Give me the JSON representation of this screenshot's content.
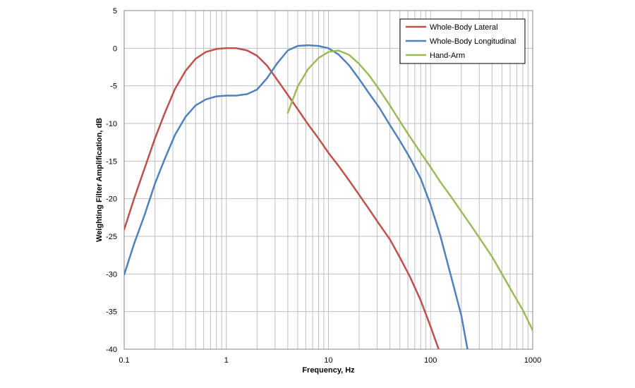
{
  "chart_data": {
    "type": "line",
    "title": "",
    "xlabel": "Frequency, Hz",
    "ylabel": "Weighting Filter Amplification, dB",
    "xscale": "log",
    "xlim": [
      0.1,
      1000
    ],
    "ylim": [
      -40,
      5
    ],
    "x_ticks": [
      0.1,
      1,
      10,
      100,
      1000
    ],
    "x_tick_labels": [
      "0.1",
      "1",
      "10",
      "100",
      "1000"
    ],
    "y_ticks": [
      5,
      0,
      -5,
      -10,
      -15,
      -20,
      -25,
      -30,
      -35,
      -40
    ],
    "y_tick_labels": [
      "5",
      "0",
      "-5",
      "-10",
      "-15",
      "-20",
      "-25",
      "-30",
      "-35",
      "-40"
    ],
    "grid": true,
    "legend_position": "top-right",
    "series": [
      {
        "name": "Whole-Body Lateral",
        "color": "#C0504D",
        "x": [
          0.1,
          0.125,
          0.16,
          0.2,
          0.25,
          0.315,
          0.4,
          0.5,
          0.63,
          0.8,
          1,
          1.25,
          1.6,
          2,
          2.5,
          3.15,
          4,
          5,
          6.3,
          8,
          10,
          12.5,
          16,
          20,
          25,
          31.5,
          40,
          50,
          63,
          80,
          100,
          120
        ],
        "y": [
          -24.1,
          -20.0,
          -15.8,
          -12.0,
          -8.6,
          -5.4,
          -3.0,
          -1.4,
          -0.5,
          -0.1,
          0.0,
          0.0,
          -0.3,
          -1.0,
          -2.3,
          -4.2,
          -6.2,
          -8.1,
          -10.1,
          -12.0,
          -13.9,
          -15.6,
          -17.6,
          -19.5,
          -21.4,
          -23.4,
          -25.4,
          -27.8,
          -30.4,
          -33.5,
          -37.0,
          -40.0
        ]
      },
      {
        "name": "Whole-Body Longitudinal",
        "color": "#4F81BD",
        "x": [
          0.1,
          0.125,
          0.16,
          0.2,
          0.25,
          0.315,
          0.4,
          0.5,
          0.63,
          0.8,
          1,
          1.25,
          1.6,
          2,
          2.5,
          3.15,
          4,
          5,
          6.3,
          8,
          10,
          12.5,
          16,
          20,
          25,
          31.5,
          40,
          50,
          63,
          80,
          100,
          125,
          160,
          200,
          230
        ],
        "y": [
          -30.1,
          -26.0,
          -22.0,
          -18.0,
          -14.7,
          -11.5,
          -9.1,
          -7.6,
          -6.8,
          -6.4,
          -6.3,
          -6.3,
          -6.1,
          -5.5,
          -4.0,
          -2.0,
          -0.3,
          0.3,
          0.4,
          0.3,
          0.0,
          -0.8,
          -2.3,
          -4.1,
          -6.0,
          -7.9,
          -10.2,
          -12.3,
          -14.6,
          -17.3,
          -20.8,
          -25.0,
          -30.5,
          -35.5,
          -40.0
        ]
      },
      {
        "name": "Hand-Arm",
        "color": "#9BBB59",
        "x": [
          4,
          5,
          6.3,
          8,
          10,
          12.5,
          16,
          20,
          25,
          31.5,
          40,
          50,
          63,
          80,
          100,
          125,
          160,
          200,
          250,
          315,
          400,
          500,
          630,
          800,
          1000
        ],
        "y": [
          -8.6,
          -5.1,
          -2.8,
          -1.3,
          -0.5,
          -0.3,
          -0.9,
          -2.1,
          -3.6,
          -5.5,
          -7.6,
          -9.7,
          -11.8,
          -13.9,
          -15.8,
          -17.8,
          -19.8,
          -21.7,
          -23.6,
          -25.6,
          -27.7,
          -30.0,
          -32.4,
          -34.8,
          -37.5
        ]
      }
    ]
  }
}
